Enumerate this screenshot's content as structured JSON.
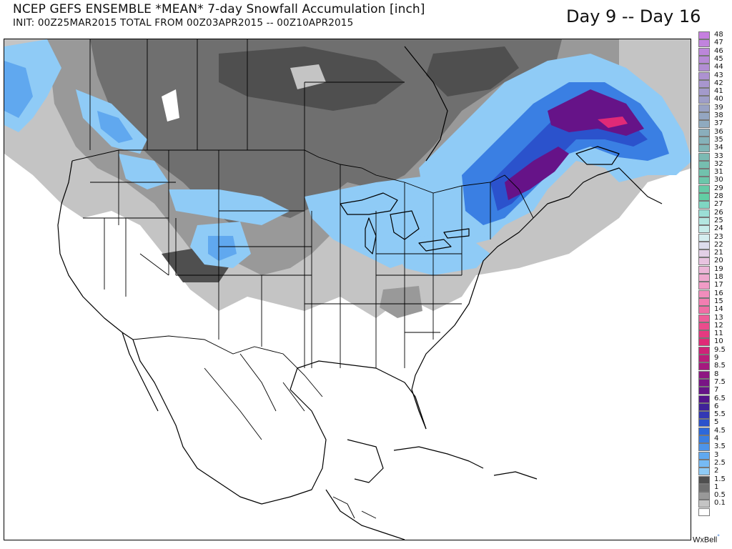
{
  "header": {
    "title": "NCEP GEFS ENSEMBLE *MEAN* 7-day Snowfall Accumulation [inch]",
    "subtitle": "INIT: 00Z25MAR2015   TOTAL FROM  00Z03APR2015  -- 00Z10APR2015",
    "period": "Day 9 -- Day 16"
  },
  "legend": {
    "levels": [
      {
        "label": "48",
        "color": "#c67fe0"
      },
      {
        "label": "47",
        "color": "#c183dd"
      },
      {
        "label": "46",
        "color": "#bc86da"
      },
      {
        "label": "45",
        "color": "#b78ad7"
      },
      {
        "label": "44",
        "color": "#b28ed4"
      },
      {
        "label": "43",
        "color": "#ad92d1"
      },
      {
        "label": "42",
        "color": "#a896ce"
      },
      {
        "label": "41",
        "color": "#a39acb"
      },
      {
        "label": "40",
        "color": "#9e9ec8"
      },
      {
        "label": "39",
        "color": "#99a2c5"
      },
      {
        "label": "38",
        "color": "#94a6c2"
      },
      {
        "label": "37",
        "color": "#8faabf"
      },
      {
        "label": "36",
        "color": "#8aaebc"
      },
      {
        "label": "35",
        "color": "#85b2b9"
      },
      {
        "label": "34",
        "color": "#80b6b6"
      },
      {
        "label": "33",
        "color": "#7bbab3"
      },
      {
        "label": "32",
        "color": "#76beb0"
      },
      {
        "label": "31",
        "color": "#71c2ad"
      },
      {
        "label": "30",
        "color": "#6cc6aa"
      },
      {
        "label": "29",
        "color": "#67caa7"
      },
      {
        "label": "28",
        "color": "#62cea4"
      },
      {
        "label": "27",
        "color": "#7fd6c3"
      },
      {
        "label": "26",
        "color": "#9bdfd6"
      },
      {
        "label": "25",
        "color": "#b3e6e0"
      },
      {
        "label": "24",
        "color": "#c6ecea"
      },
      {
        "label": "23",
        "color": "#d5eef0"
      },
      {
        "label": "22",
        "color": "#dcdcec"
      },
      {
        "label": "21",
        "color": "#e2cfe6"
      },
      {
        "label": "20",
        "color": "#e8c3e0"
      },
      {
        "label": "19",
        "color": "#ecb6d8"
      },
      {
        "label": "18",
        "color": "#efa9cf"
      },
      {
        "label": "17",
        "color": "#f19bc6"
      },
      {
        "label": "16",
        "color": "#f28dbc"
      },
      {
        "label": "15",
        "color": "#f27eb1"
      },
      {
        "label": "14",
        "color": "#f06ea5"
      },
      {
        "label": "13",
        "color": "#ee5e99"
      },
      {
        "label": "12",
        "color": "#ea4c8c"
      },
      {
        "label": "11",
        "color": "#e63a80"
      },
      {
        "label": "10",
        "color": "#e02a77"
      },
      {
        "label": "9.5",
        "color": "#cf2278"
      },
      {
        "label": "9",
        "color": "#bb1c7b"
      },
      {
        "label": "8.5",
        "color": "#a5197f"
      },
      {
        "label": "8",
        "color": "#8e1682"
      },
      {
        "label": "7.5",
        "color": "#791485"
      },
      {
        "label": "7",
        "color": "#661388"
      },
      {
        "label": "6.5",
        "color": "#54138c"
      },
      {
        "label": "6",
        "color": "#3f2299"
      },
      {
        "label": "5.5",
        "color": "#3338b4"
      },
      {
        "label": "5",
        "color": "#2b52cc"
      },
      {
        "label": "4.5",
        "color": "#2c68db"
      },
      {
        "label": "4",
        "color": "#3a7fe3"
      },
      {
        "label": "3.5",
        "color": "#4d94ea"
      },
      {
        "label": "3",
        "color": "#60a8ef"
      },
      {
        "label": "2.5",
        "color": "#76baf3"
      },
      {
        "label": "2",
        "color": "#8fcbf6"
      },
      {
        "label": "1.5",
        "color": "#4f4f4f"
      },
      {
        "label": "1",
        "color": "#6f6f6f"
      },
      {
        "label": "0.5",
        "color": "#999999"
      },
      {
        "label": "0.1",
        "color": "#c4c4c4"
      },
      {
        "label": "",
        "color": "#ffffff"
      }
    ]
  },
  "credit": {
    "text": "WxBell"
  },
  "colors": {
    "land": "#ffffff",
    "border": "#000000",
    "light_gray": "#c4c4c4",
    "mid_gray": "#999999",
    "dark_gray": "#6f6f6f",
    "darker_gray": "#4f4f4f",
    "light_blue": "#8fcbf6",
    "blue": "#60a8ef",
    "mid_blue": "#3a7fe3",
    "deep_blue": "#2b52cc",
    "purple": "#661388",
    "magenta": "#e02a77"
  }
}
